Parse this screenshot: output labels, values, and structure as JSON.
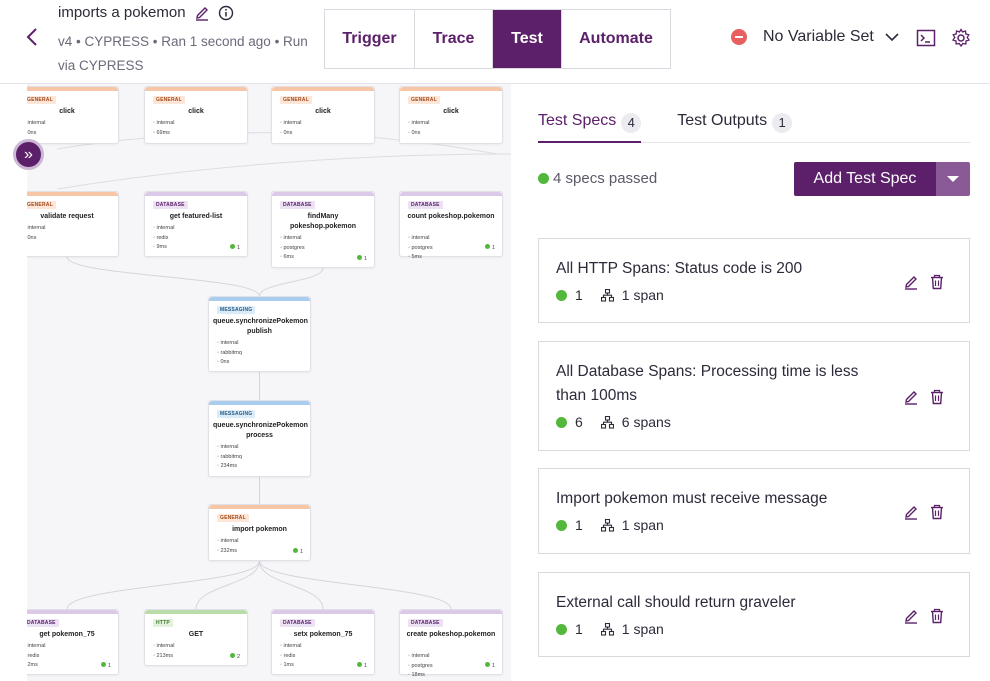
{
  "header": {
    "title": "imports a pokemon",
    "meta": "v4 • CYPRESS • Ran 1 second ago • Run via CYPRESS",
    "tabs": [
      "Trigger",
      "Trace",
      "Test",
      "Automate"
    ],
    "active_tab": "Test",
    "variable_set": "No Variable Set",
    "icons": [
      "back-arrow-icon",
      "pencil-icon",
      "info-icon",
      "minus-circle-icon",
      "chevron-down-icon",
      "terminal-icon",
      "gear-icon"
    ]
  },
  "graph": {
    "nodes": [
      {
        "type": "GENERAL",
        "name": "click",
        "attrs": [
          "internal",
          "0ns"
        ],
        "ok": ""
      },
      {
        "type": "GENERAL",
        "name": "click",
        "attrs": [
          "internal",
          "69ms"
        ],
        "ok": ""
      },
      {
        "type": "GENERAL",
        "name": "click",
        "attrs": [
          "internal",
          "0ns"
        ],
        "ok": ""
      },
      {
        "type": "GENERAL",
        "name": "click",
        "attrs": [
          "internal",
          "0ns"
        ],
        "ok": ""
      },
      {
        "type": "GENERAL",
        "name": "validate request",
        "attrs": [
          "internal",
          "0ns"
        ],
        "ok": ""
      },
      {
        "type": "DATABASE",
        "name": "get featured-list",
        "attrs": [
          "internal",
          "redis",
          "9ms"
        ],
        "ok": "1"
      },
      {
        "type": "DATABASE",
        "name": "findMany pokeshop.pokemon",
        "attrs": [
          "internal",
          "postgres",
          "6ms"
        ],
        "ok": "1"
      },
      {
        "type": "DATABASE",
        "name": "count pokeshop.pokemon",
        "attrs": [
          "internal",
          "postgres",
          "5ms"
        ],
        "ok": "1"
      },
      {
        "type": "MESSAGING",
        "name": "queue.synchronizePokemon publish",
        "attrs": [
          "internal",
          "rabbitmq",
          "0ns"
        ],
        "ok": ""
      },
      {
        "type": "MESSAGING",
        "name": "queue.synchronizePokemon process",
        "attrs": [
          "internal",
          "rabbitmq",
          "234ms"
        ],
        "ok": ""
      },
      {
        "type": "GENERAL",
        "name": "import pokemon",
        "attrs": [
          "internal",
          "232ms"
        ],
        "ok": "1"
      },
      {
        "type": "DATABASE",
        "name": "get pokemon_75",
        "attrs": [
          "internal",
          "redis",
          "2ms"
        ],
        "ok": "1"
      },
      {
        "type": "HTTP",
        "name": "GET",
        "attrs": [
          "internal",
          "213ms"
        ],
        "ok": "2"
      },
      {
        "type": "DATABASE",
        "name": "setx pokemon_75",
        "attrs": [
          "internal",
          "redis",
          "1ms"
        ],
        "ok": "1"
      },
      {
        "type": "DATABASE",
        "name": "create pokeshop.pokemon",
        "attrs": [
          "internal",
          "postgres",
          "18ms"
        ],
        "ok": "1"
      }
    ],
    "collapse_icon": "double-chevron-right-icon"
  },
  "panel": {
    "tabs": [
      {
        "label": "Test Specs",
        "count": "4"
      },
      {
        "label": "Test Outputs",
        "count": "1"
      }
    ],
    "passed_text": "4 specs passed",
    "add_button": "Add Test Spec",
    "specs": [
      {
        "title": "All HTTP Spans: Status code is 200",
        "passed": "1",
        "spans": "1 span"
      },
      {
        "title": "All Database Spans: Processing time is less than 100ms",
        "passed": "6",
        "spans": "6 spans"
      },
      {
        "title": "Import pokemon must receive message",
        "passed": "1",
        "spans": "1 span"
      },
      {
        "title": "External call should return graveler",
        "passed": "1",
        "spans": "1 span"
      }
    ]
  },
  "colors": {
    "brand": "#5b2069",
    "ok": "#52b83b",
    "error": "#e8605e"
  }
}
